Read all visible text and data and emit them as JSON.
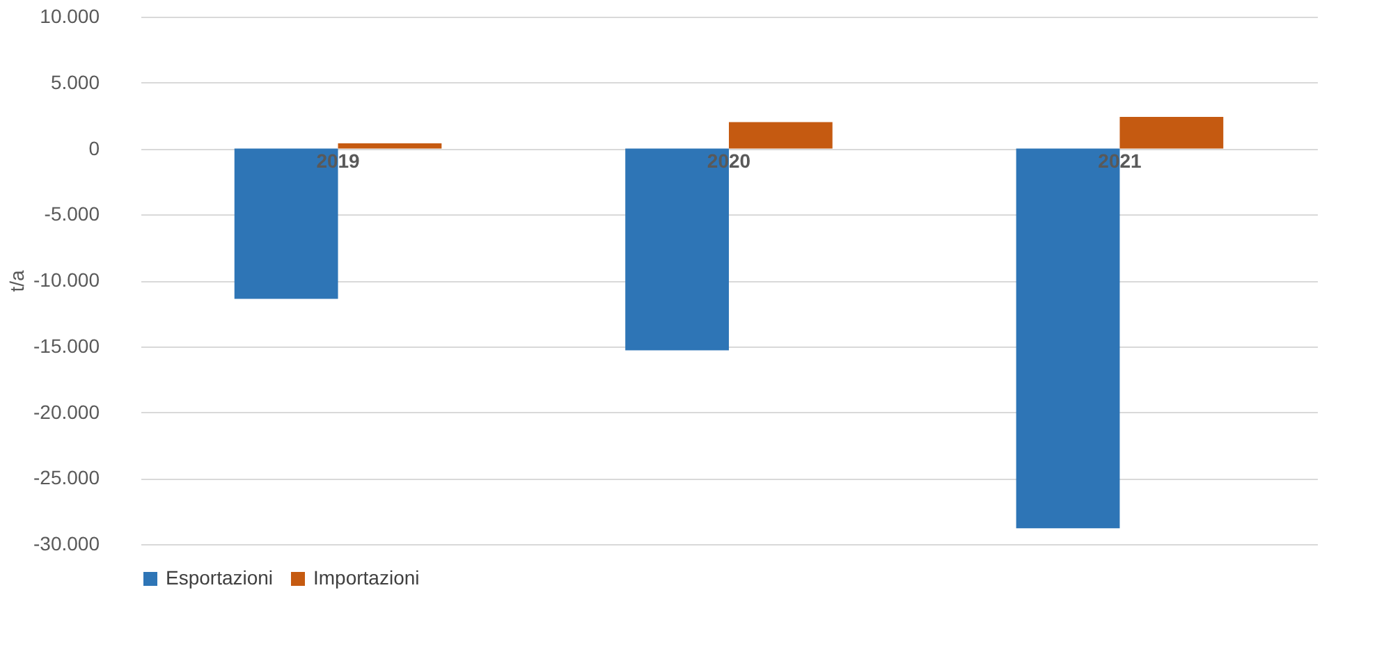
{
  "chart_data": {
    "type": "bar",
    "ylabel": "t/a",
    "categories": [
      "2019",
      "2020",
      "2021"
    ],
    "series": [
      {
        "name": "Esportazioni",
        "color": "#2e75b6",
        "values": [
          -11400,
          -15300,
          -28800
        ]
      },
      {
        "name": "Importazioni",
        "color": "#c55a11",
        "values": [
          400,
          2000,
          2400
        ]
      }
    ],
    "ylim": [
      -30000,
      10000
    ],
    "yticks": [
      {
        "value": -30000,
        "label": "-30.000"
      },
      {
        "value": -25000,
        "label": "-25.000"
      },
      {
        "value": -20000,
        "label": "-20.000"
      },
      {
        "value": -15000,
        "label": "-15.000"
      },
      {
        "value": -10000,
        "label": "-10.000"
      },
      {
        "value": -5000,
        "label": "-5.000"
      },
      {
        "value": 0,
        "label": "0"
      },
      {
        "value": 5000,
        "label": "5.000"
      },
      {
        "value": 10000,
        "label": "10.000"
      }
    ],
    "grid": "y",
    "legend": "bottom"
  }
}
